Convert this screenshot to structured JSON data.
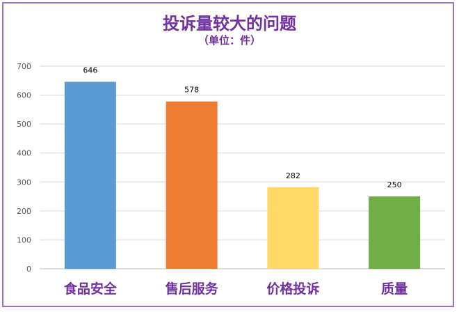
{
  "chart_data": {
    "type": "bar",
    "title": "投诉量较大的问题",
    "subtitle": "（单位：件）",
    "categories": [
      "食品安全",
      "售后服务",
      "价格投诉",
      "质量"
    ],
    "values": [
      646,
      578,
      282,
      250
    ],
    "bar_colors": [
      "#5b9bd5",
      "#ed7d31",
      "#ffd966",
      "#70ad47"
    ],
    "ylim": [
      0,
      700
    ],
    "yticks": [
      0,
      100,
      200,
      300,
      400,
      500,
      600,
      700
    ],
    "grid": true,
    "xlabel": "",
    "ylabel": ""
  },
  "colors": {
    "title": "#7030a0",
    "frame": "#9b6fc9",
    "gridline": "#d9d9d9"
  }
}
